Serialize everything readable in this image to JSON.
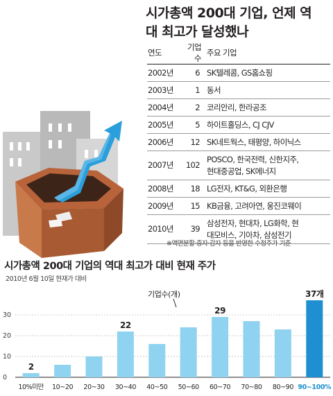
{
  "title_lines": [
    "시가총액 200대 기업, 언제 역",
    "대 최고가 달성했나"
  ],
  "table": {
    "headers": [
      "연도",
      "기업 수",
      "주요 기업"
    ],
    "rows": [
      {
        "year": "2002년",
        "count": "6",
        "companies": [
          "SK텔레콤, GS홈쇼핑"
        ]
      },
      {
        "year": "2003년",
        "count": "1",
        "companies": [
          "동서"
        ]
      },
      {
        "year": "2004년",
        "count": "2",
        "companies": [
          "코리안리, 한라공조"
        ]
      },
      {
        "year": "2005년",
        "count": "5",
        "companies": [
          "하이트홀딩스, CJ CJV"
        ]
      },
      {
        "year": "2006년",
        "count": "12",
        "companies": [
          "SK네트웍스, 태평양, 하이닉스"
        ]
      },
      {
        "year": "2007년",
        "count": "102",
        "companies": [
          "POSCO, 한국전력, 신한지주,",
          "현대중공업, SK에너지"
        ]
      },
      {
        "year": "2008년",
        "count": "18",
        "companies": [
          "LG전자, KT&G, 외환은행"
        ]
      },
      {
        "year": "2009년",
        "count": "15",
        "companies": [
          "KB금융, 고려아연, 웅진코웨이"
        ]
      },
      {
        "year": "2010년",
        "count": "39",
        "companies": [
          "삼성전자, 현대차, LG화학, 현",
          "대모비스, 기아차, 삼성전기"
        ]
      }
    ]
  },
  "table_note": "※액면분할·증자·감자 등을 반영한 수정주가 기준",
  "colors": {
    "bar": "#8fd3f0",
    "bar_highlight": "#1e8fd0",
    "highlight_text": "#1e8fd0",
    "text": "#231f20"
  },
  "chart_data": {
    "type": "bar",
    "title": "시가총액 200대 기업의 역대 최고가 대비 현재 주가",
    "subtitle": "2010년 6월 10일 현재가 대비",
    "annotation": "기업수(개)",
    "categories": [
      "10%미만",
      "10~20",
      "20~30",
      "30~40",
      "40~50",
      "50~60",
      "60~70",
      "70~80",
      "80~90",
      "90~100%"
    ],
    "values": [
      2,
      6,
      10,
      22,
      16,
      24,
      29,
      27,
      23,
      37
    ],
    "data_labels": [
      "2",
      "",
      "",
      "22",
      "",
      "",
      "29",
      "",
      "",
      "37개"
    ],
    "highlight_index": 9,
    "y_ticks": [
      0,
      10,
      20,
      30
    ],
    "ylim": [
      0,
      40
    ],
    "grid": true,
    "legend": "none"
  }
}
